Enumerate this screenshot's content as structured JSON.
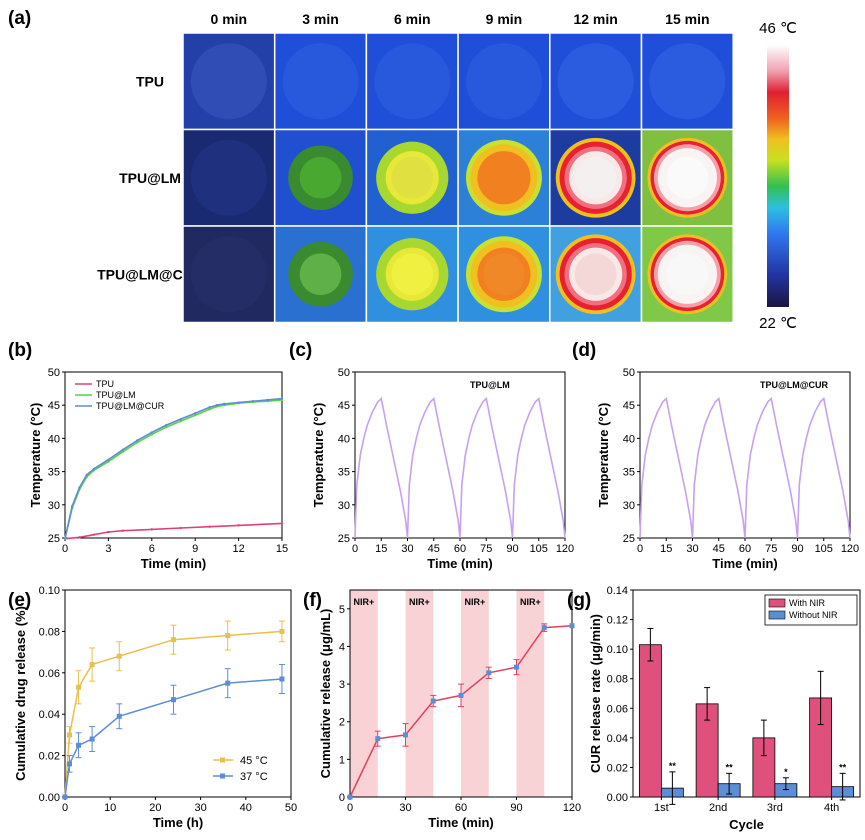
{
  "panel_a": {
    "label": "(a)",
    "times": [
      "0 min",
      "3 min",
      "6 min",
      "9 min",
      "12 min",
      "15 min"
    ],
    "samples": [
      "TPU",
      "TPU@LM",
      "TPU@LM@CUR"
    ],
    "colorbar_max": "46 ℃",
    "colorbar_min": "22 ℃",
    "colors": {
      "bg_cold": "#0c1a6e",
      "bg_blue": "#1f4ed8"
    }
  },
  "chart_data": [
    {
      "id": "b",
      "label": "(b)",
      "type": "line",
      "xlabel": "Time (min)",
      "ylabel": "Temperature (°C)",
      "xlim": [
        0,
        15
      ],
      "ylim": [
        25,
        50
      ],
      "xticks": [
        "0",
        "3",
        "6",
        "9",
        "12",
        "15"
      ],
      "yticks": [
        "25",
        "30",
        "35",
        "40",
        "45",
        "50"
      ],
      "series": [
        {
          "name": "TPU",
          "color": "#e0407a",
          "x": [
            0,
            1,
            2,
            3,
            4,
            6,
            8,
            10,
            12,
            15
          ],
          "y": [
            24.9,
            25.1,
            25.5,
            25.9,
            26.1,
            26.3,
            26.5,
            26.7,
            26.9,
            27.2
          ]
        },
        {
          "name": "TPU@LM",
          "color": "#55d444",
          "x": [
            0,
            0.5,
            1,
            1.5,
            2,
            3,
            4,
            5,
            6,
            7,
            8,
            9,
            10,
            10.5,
            11,
            12,
            13,
            14,
            15
          ],
          "y": [
            24.9,
            29.5,
            32.3,
            34.2,
            35.2,
            36.5,
            38.0,
            39.4,
            40.6,
            41.7,
            42.6,
            43.5,
            44.4,
            44.8,
            45.0,
            45.3,
            45.5,
            45.6,
            45.8
          ]
        },
        {
          "name": "TPU@LM@CUR",
          "color": "#5b8ed6",
          "x": [
            0,
            0.5,
            1,
            1.5,
            2,
            3,
            4,
            5,
            6,
            7,
            8,
            9,
            10,
            10.5,
            11,
            12,
            13,
            14,
            15
          ],
          "y": [
            24.9,
            29.8,
            32.6,
            34.5,
            35.4,
            36.8,
            38.3,
            39.7,
            40.9,
            42.0,
            42.9,
            43.8,
            44.7,
            45.0,
            45.2,
            45.4,
            45.6,
            45.8,
            46.0
          ]
        }
      ]
    },
    {
      "id": "c",
      "label": "(c)",
      "type": "line",
      "xlabel": "Time (min)",
      "ylabel": "Temperature (°C)",
      "annotation": "TPU@LM",
      "xlim": [
        0,
        120
      ],
      "ylim": [
        25,
        50
      ],
      "xticks": [
        "0",
        "15",
        "30",
        "45",
        "60",
        "75",
        "90",
        "105",
        "120"
      ],
      "yticks": [
        "25",
        "30",
        "35",
        "40",
        "45",
        "50"
      ],
      "series": [
        {
          "name": "TPU@LM",
          "color": "#c7a0f0",
          "x": [
            0,
            1,
            3,
            5,
            7,
            10,
            13,
            15,
            18,
            22,
            26,
            29,
            30,
            31,
            33,
            35,
            37,
            40,
            43,
            45,
            48,
            52,
            56,
            59,
            60,
            61,
            63,
            65,
            67,
            70,
            73,
            75,
            78,
            82,
            86,
            89,
            90,
            91,
            93,
            95,
            97,
            100,
            103,
            105,
            108,
            112,
            116,
            119,
            120
          ],
          "y": [
            25,
            33,
            37.5,
            40,
            42,
            44,
            45.5,
            46,
            42,
            37,
            32,
            27.5,
            25,
            33,
            37.5,
            40,
            42,
            44,
            45.5,
            46,
            42,
            37,
            32,
            27.5,
            25,
            33,
            37.5,
            40,
            42,
            44,
            45.5,
            46,
            42,
            37,
            32,
            27.5,
            25,
            33,
            37.5,
            40,
            42,
            44,
            45.5,
            46,
            42,
            37,
            32,
            27.5,
            25
          ]
        }
      ]
    },
    {
      "id": "d",
      "label": "(d)",
      "type": "line",
      "xlabel": "Time (min)",
      "ylabel": "Temperature (°C)",
      "annotation": "TPU@LM@CUR",
      "xlim": [
        0,
        120
      ],
      "ylim": [
        25,
        50
      ],
      "xticks": [
        "0",
        "15",
        "30",
        "45",
        "60",
        "75",
        "90",
        "105",
        "120"
      ],
      "yticks": [
        "25",
        "30",
        "35",
        "40",
        "45",
        "50"
      ],
      "series": [
        {
          "name": "TPU@LM@CUR",
          "color": "#c7a0f0",
          "x": [
            0,
            1,
            3,
            5,
            7,
            10,
            13,
            15,
            18,
            22,
            26,
            29,
            30,
            31,
            33,
            35,
            37,
            40,
            43,
            45,
            48,
            52,
            56,
            59,
            60,
            61,
            63,
            65,
            67,
            70,
            73,
            75,
            78,
            82,
            86,
            89,
            90,
            91,
            93,
            95,
            97,
            100,
            103,
            105,
            108,
            112,
            116,
            119,
            120
          ],
          "y": [
            25,
            33,
            37.5,
            40,
            42,
            44,
            45.5,
            46,
            42,
            37,
            32,
            27.5,
            25,
            33,
            37.5,
            40,
            42,
            44,
            45.5,
            46,
            42,
            37,
            32,
            27.5,
            25,
            33,
            37.5,
            40,
            42,
            44,
            45.5,
            46,
            42,
            37,
            32,
            27.5,
            25,
            33,
            37.5,
            40,
            42,
            44,
            45.5,
            46,
            42,
            37,
            32,
            27.5,
            25
          ]
        }
      ]
    },
    {
      "id": "e",
      "label": "(e)",
      "type": "line",
      "xlabel": "Time (h)",
      "ylabel": "Cumulative drug release (%)",
      "xlim": [
        0,
        50
      ],
      "ylim": [
        0,
        0.1
      ],
      "xticks": [
        "0",
        "10",
        "20",
        "30",
        "40",
        "50"
      ],
      "yticks": [
        "0.00",
        "0.02",
        "0.04",
        "0.06",
        "0.08",
        "0.10"
      ],
      "series": [
        {
          "name": "45 °C",
          "color": "#e8c04e",
          "x": [
            0,
            1,
            3,
            6,
            12,
            24,
            36,
            48
          ],
          "y": [
            0.0,
            0.03,
            0.053,
            0.064,
            0.068,
            0.076,
            0.078,
            0.08
          ],
          "err": [
            0,
            0.004,
            0.008,
            0.008,
            0.007,
            0.007,
            0.007,
            0.005
          ]
        },
        {
          "name": "37 °C",
          "color": "#5b8ed6",
          "x": [
            0,
            1,
            3,
            6,
            12,
            24,
            36,
            48
          ],
          "y": [
            0.0,
            0.016,
            0.025,
            0.028,
            0.039,
            0.047,
            0.055,
            0.057
          ],
          "err": [
            0,
            0.004,
            0.006,
            0.006,
            0.006,
            0.007,
            0.007,
            0.007
          ]
        }
      ]
    },
    {
      "id": "f",
      "label": "(f)",
      "type": "line",
      "xlabel": "Time (min)",
      "ylabel": "Cumulative release (μg/mL)",
      "xlim": [
        0,
        120
      ],
      "ylim": [
        0,
        5.5
      ],
      "xticks": [
        "0",
        "30",
        "60",
        "90",
        "120"
      ],
      "yticks": [
        "0",
        "1",
        "2",
        "3",
        "4",
        "5"
      ],
      "shaded_regions": [
        [
          0,
          15
        ],
        [
          30,
          45
        ],
        [
          60,
          75
        ],
        [
          90,
          105
        ]
      ],
      "shaded_label": "NIR+",
      "series": [
        {
          "name": "release",
          "color": "#e0405e",
          "x": [
            0,
            15,
            30,
            45,
            60,
            75,
            90,
            105,
            120
          ],
          "y": [
            0,
            1.55,
            1.65,
            2.55,
            2.7,
            3.3,
            3.45,
            4.5,
            4.55
          ],
          "err": [
            0,
            0.2,
            0.3,
            0.15,
            0.3,
            0.15,
            0.2,
            0.1,
            0
          ]
        }
      ]
    },
    {
      "id": "g",
      "label": "(g)",
      "type": "bar",
      "xlabel": "Cycle",
      "ylabel": "CUR release rate (μg/min)",
      "ylim": [
        0,
        0.14
      ],
      "categories": [
        "1st",
        "2nd",
        "3rd",
        "4th"
      ],
      "yticks": [
        "0.00",
        "0.02",
        "0.04",
        "0.06",
        "0.08",
        "0.10",
        "0.12",
        "0.14"
      ],
      "series": [
        {
          "name": "With NIR",
          "color": "#e0507c",
          "values": [
            0.103,
            0.063,
            0.04,
            0.067
          ],
          "err": [
            0.011,
            0.011,
            0.012,
            0.018
          ]
        },
        {
          "name": "Without NIR",
          "color": "#5b8ed6",
          "values": [
            0.006,
            0.009,
            0.009,
            0.007
          ],
          "err": [
            0.011,
            0.007,
            0.004,
            0.009
          ]
        }
      ],
      "significance": [
        "**",
        "**",
        "*",
        "**"
      ]
    }
  ]
}
